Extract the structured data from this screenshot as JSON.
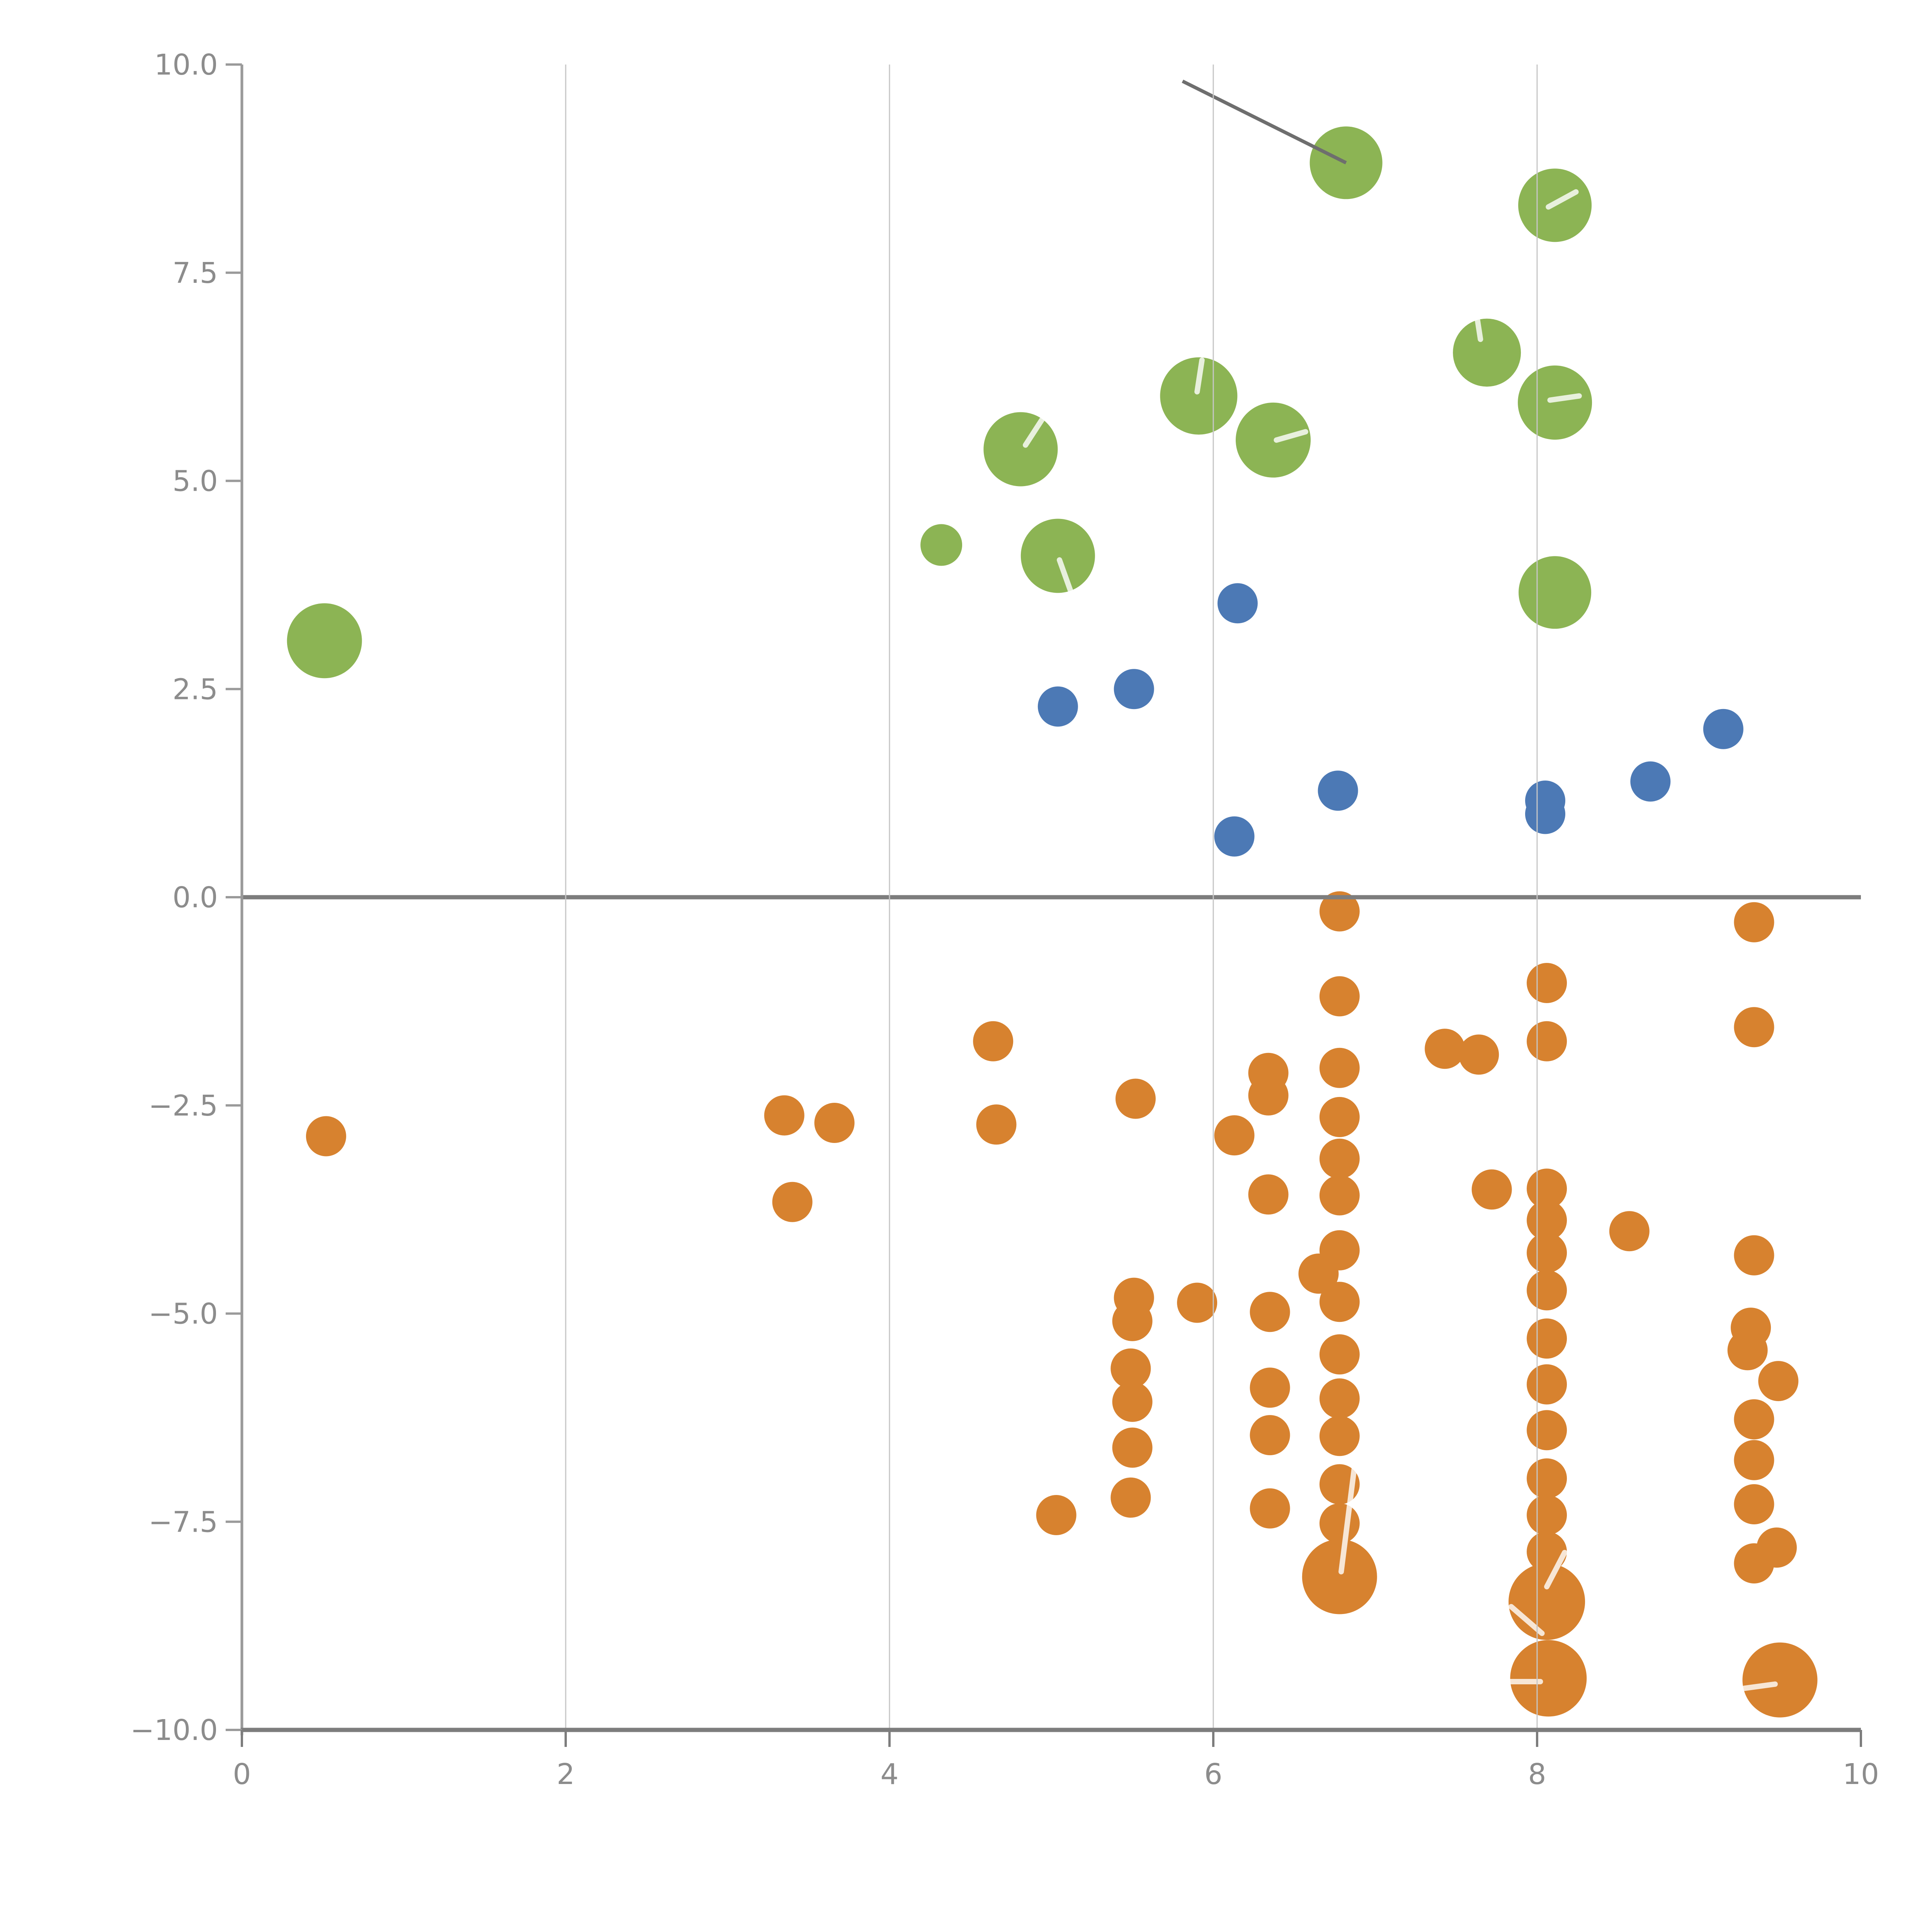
{
  "chart_data": {
    "type": "scatter",
    "title": "",
    "xlabel": "",
    "ylabel": "",
    "xlim": [
      0,
      10
    ],
    "ylim": [
      -10,
      10
    ],
    "grid": "vertical-only",
    "legend": "none",
    "x_ticks": [
      0,
      2,
      4,
      6,
      8,
      10
    ],
    "x_tick_labels": [
      "0",
      "2",
      "4",
      "6",
      "8",
      "10"
    ],
    "x_gridlines": [
      2,
      4,
      6,
      8
    ],
    "y_ticks": [
      10.0,
      7.5,
      5.0,
      2.5,
      0.0,
      -2.5,
      -5.0,
      -7.5,
      -10.0
    ],
    "y_tick_labels": [
      "10.0",
      "7.5",
      "5.0",
      "2.5",
      "0.0",
      "−2.5",
      "−5.0",
      "−7.5",
      "−10.0"
    ],
    "colors": {
      "green": "#8CB454",
      "blue": "#4C79B5",
      "orange": "#D7822F",
      "zero_line": "#7D7D7D",
      "bottom_spine": "#7D7D7D",
      "left_spine": "#9A9A9A",
      "gridline": "#C6C6C6",
      "annotation_line": "#6E6E6E",
      "tick_label": "#8C8C8C",
      "white_tick": "rgba(255,255,255,0.8)"
    },
    "reference_lines": {
      "horizontal_zero_line_y": 0.0,
      "baseline_y": -10.0
    },
    "annotation_line": {
      "x1": 5.81,
      "y1": 9.8,
      "x2": 6.82,
      "y2": 8.82
    },
    "series": [
      {
        "name": "green",
        "points": [
          {
            "x": 0.51,
            "y": 3.08,
            "r": 97
          },
          {
            "x": 4.32,
            "y": 4.23,
            "r": 54
          },
          {
            "x": 4.81,
            "y": 5.38,
            "r": 96
          },
          {
            "x": 5.04,
            "y": 4.1,
            "r": 96
          },
          {
            "x": 5.91,
            "y": 6.02,
            "r": 100
          },
          {
            "x": 6.37,
            "y": 5.49,
            "r": 97
          },
          {
            "x": 6.82,
            "y": 8.82,
            "r": 94
          },
          {
            "x": 7.69,
            "y": 6.54,
            "r": 88
          },
          {
            "x": 8.11,
            "y": 5.94,
            "r": 96
          },
          {
            "x": 8.11,
            "y": 8.31,
            "r": 95
          },
          {
            "x": 8.11,
            "y": 3.66,
            "r": 94
          }
        ]
      },
      {
        "name": "blue",
        "points": [
          {
            "x": 6.15,
            "y": 3.53,
            "r": 52
          },
          {
            "x": 5.04,
            "y": 2.29,
            "r": 52
          },
          {
            "x": 5.51,
            "y": 2.5,
            "r": 52
          },
          {
            "x": 6.13,
            "y": 0.73,
            "r": 52
          },
          {
            "x": 6.77,
            "y": 1.28,
            "r": 52
          },
          {
            "x": 8.05,
            "y": 1.16,
            "r": 52
          },
          {
            "x": 8.05,
            "y": 1.0,
            "r": 52
          },
          {
            "x": 8.7,
            "y": 1.39,
            "r": 52
          },
          {
            "x": 9.15,
            "y": 2.02,
            "r": 52
          }
        ]
      },
      {
        "name": "orange",
        "points": [
          {
            "x": 0.52,
            "y": -2.87,
            "r": 52
          },
          {
            "x": 3.35,
            "y": -2.62,
            "r": 52
          },
          {
            "x": 3.66,
            "y": -2.71,
            "r": 52
          },
          {
            "x": 3.4,
            "y": -3.66,
            "r": 52
          },
          {
            "x": 4.64,
            "y": -1.73,
            "r": 52
          },
          {
            "x": 4.66,
            "y": -2.73,
            "r": 52
          },
          {
            "x": 5.52,
            "y": -2.42,
            "r": 52
          },
          {
            "x": 5.51,
            "y": -4.81,
            "r": 52
          },
          {
            "x": 5.5,
            "y": -5.09,
            "r": 52
          },
          {
            "x": 5.49,
            "y": -5.66,
            "r": 52
          },
          {
            "x": 5.5,
            "y": -6.06,
            "r": 52
          },
          {
            "x": 5.5,
            "y": -6.61,
            "r": 52
          },
          {
            "x": 5.49,
            "y": -7.21,
            "r": 52
          },
          {
            "x": 5.03,
            "y": -7.42,
            "r": 52
          },
          {
            "x": 5.9,
            "y": -4.87,
            "r": 52
          },
          {
            "x": 6.13,
            "y": -2.86,
            "r": 52
          },
          {
            "x": 6.34,
            "y": -2.11,
            "r": 52
          },
          {
            "x": 6.34,
            "y": -2.38,
            "r": 52
          },
          {
            "x": 6.34,
            "y": -3.57,
            "r": 52
          },
          {
            "x": 6.35,
            "y": -4.98,
            "r": 52
          },
          {
            "x": 6.35,
            "y": -5.89,
            "r": 52
          },
          {
            "x": 6.35,
            "y": -6.46,
            "r": 52
          },
          {
            "x": 6.35,
            "y": -7.34,
            "r": 52
          },
          {
            "x": 6.78,
            "y": -0.17,
            "r": 52
          },
          {
            "x": 6.78,
            "y": -1.19,
            "r": 52
          },
          {
            "x": 6.78,
            "y": -2.05,
            "r": 52
          },
          {
            "x": 6.78,
            "y": -2.64,
            "r": 52
          },
          {
            "x": 6.78,
            "y": -3.14,
            "r": 52
          },
          {
            "x": 6.78,
            "y": -3.58,
            "r": 52
          },
          {
            "x": 6.78,
            "y": -4.24,
            "r": 52
          },
          {
            "x": 6.65,
            "y": -4.52,
            "r": 52
          },
          {
            "x": 6.78,
            "y": -4.86,
            "r": 52
          },
          {
            "x": 6.78,
            "y": -5.49,
            "r": 52
          },
          {
            "x": 6.78,
            "y": -6.02,
            "r": 52
          },
          {
            "x": 6.78,
            "y": -6.47,
            "r": 52
          },
          {
            "x": 6.78,
            "y": -7.05,
            "r": 52
          },
          {
            "x": 6.78,
            "y": -7.52,
            "r": 52
          },
          {
            "x": 6.78,
            "y": -8.16,
            "r": 97
          },
          {
            "x": 7.43,
            "y": -1.82,
            "r": 52
          },
          {
            "x": 7.64,
            "y": -1.89,
            "r": 52
          },
          {
            "x": 7.72,
            "y": -3.51,
            "r": 52
          },
          {
            "x": 8.06,
            "y": -1.03,
            "r": 52
          },
          {
            "x": 8.06,
            "y": -1.73,
            "r": 52
          },
          {
            "x": 8.06,
            "y": -3.5,
            "r": 52
          },
          {
            "x": 8.06,
            "y": -3.88,
            "r": 52
          },
          {
            "x": 8.06,
            "y": -4.27,
            "r": 52
          },
          {
            "x": 8.06,
            "y": -4.72,
            "r": 52
          },
          {
            "x": 8.06,
            "y": -5.3,
            "r": 52
          },
          {
            "x": 8.06,
            "y": -5.85,
            "r": 52
          },
          {
            "x": 8.06,
            "y": -6.4,
            "r": 52
          },
          {
            "x": 8.06,
            "y": -6.98,
            "r": 52
          },
          {
            "x": 8.06,
            "y": -7.42,
            "r": 52
          },
          {
            "x": 8.06,
            "y": -7.86,
            "r": 52
          },
          {
            "x": 8.06,
            "y": -8.46,
            "r": 99
          },
          {
            "x": 8.07,
            "y": -9.38,
            "r": 99
          },
          {
            "x": 8.57,
            "y": -4.01,
            "r": 52
          },
          {
            "x": 9.34,
            "y": -0.3,
            "r": 52
          },
          {
            "x": 9.34,
            "y": -1.56,
            "r": 52
          },
          {
            "x": 9.34,
            "y": -4.3,
            "r": 52
          },
          {
            "x": 9.32,
            "y": -5.17,
            "r": 52
          },
          {
            "x": 9.3,
            "y": -5.44,
            "r": 52
          },
          {
            "x": 9.49,
            "y": -5.81,
            "r": 52
          },
          {
            "x": 9.34,
            "y": -6.27,
            "r": 52
          },
          {
            "x": 9.34,
            "y": -6.76,
            "r": 52
          },
          {
            "x": 9.34,
            "y": -7.29,
            "r": 52
          },
          {
            "x": 9.48,
            "y": -7.81,
            "r": 52
          },
          {
            "x": 9.34,
            "y": -8.0,
            "r": 52
          },
          {
            "x": 9.5,
            "y": -9.4,
            "r": 97
          }
        ]
      }
    ],
    "white_segments": [
      {
        "x1": 4.94,
        "y1": 5.73,
        "x2": 4.84,
        "y2": 5.43
      },
      {
        "x1": 5.05,
        "y1": 4.05,
        "x2": 5.12,
        "y2": 3.67
      },
      {
        "x1": 5.93,
        "y1": 6.45,
        "x2": 5.9,
        "y2": 6.07
      },
      {
        "x1": 6.39,
        "y1": 5.49,
        "x2": 6.57,
        "y2": 5.59
      },
      {
        "x1": 7.62,
        "y1": 7.08,
        "x2": 7.65,
        "y2": 6.7
      },
      {
        "x1": 8.08,
        "y1": 5.97,
        "x2": 8.26,
        "y2": 6.02
      },
      {
        "x1": 8.07,
        "y1": 8.29,
        "x2": 8.24,
        "y2": 8.47
      },
      {
        "x1": 6.87,
        "y1": -6.87,
        "x2": 6.79,
        "y2": -8.1
      },
      {
        "x1": 8.17,
        "y1": -7.87,
        "x2": 8.06,
        "y2": -8.28
      },
      {
        "x1": 7.84,
        "y1": -8.52,
        "x2": 8.03,
        "y2": -8.84
      },
      {
        "x1": 7.82,
        "y1": -9.42,
        "x2": 8.02,
        "y2": -9.42
      },
      {
        "x1": 9.28,
        "y1": -9.5,
        "x2": 9.47,
        "y2": -9.45
      }
    ]
  }
}
